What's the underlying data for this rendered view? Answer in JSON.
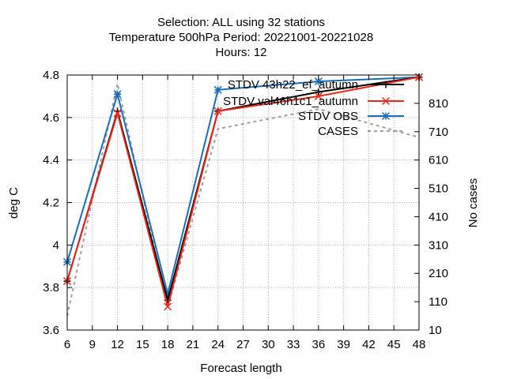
{
  "chart_data": {
    "type": "line",
    "title_lines": [
      "Selection: ALL using    32 stations",
      "Temperature 500hPa   Period: 20221001-20221028",
      "Hours:  12"
    ],
    "xlabel": "Forecast length",
    "ylabel": "deg C",
    "y2label": "No cases",
    "xlim": [
      6,
      48
    ],
    "ylim": [
      3.6,
      4.8
    ],
    "y2lim": [
      10,
      910
    ],
    "x_ticks": [
      6,
      9,
      12,
      15,
      18,
      21,
      24,
      27,
      30,
      33,
      36,
      39,
      42,
      45,
      48
    ],
    "y_ticks": [
      3.6,
      3.8,
      4.0,
      4.2,
      4.4,
      4.6,
      4.8
    ],
    "y_tick_labels": [
      "3.6",
      "3.8",
      "4",
      "4.2",
      "4.4",
      "4.6",
      "4.8"
    ],
    "y2_ticks": [
      10,
      110,
      210,
      310,
      410,
      510,
      610,
      710,
      810
    ],
    "grid": true,
    "legend_position": "top-right",
    "x": [
      6,
      12,
      18,
      24,
      36,
      48
    ],
    "series": [
      {
        "name": "STDV 43h22_ef_autumn",
        "axis": "y",
        "color": "#000000",
        "marker": "plus",
        "dash": "",
        "values": [
          3.83,
          4.63,
          3.74,
          4.63,
          4.72,
          4.79
        ]
      },
      {
        "name": "STDV val46h1c1_autumn",
        "axis": "y",
        "color": "#e8291c",
        "marker": "x",
        "dash": "",
        "values": [
          3.83,
          4.62,
          3.71,
          4.63,
          4.7,
          4.79
        ]
      },
      {
        "name": "STDV OBS",
        "axis": "y",
        "color": "#1a6db5",
        "marker": "star",
        "dash": "",
        "values": [
          3.92,
          4.71,
          3.77,
          4.73,
          4.77,
          4.79
        ]
      },
      {
        "name": "CASES",
        "axis": "y2",
        "color": "#a0a0a0",
        "marker": "none",
        "dash": "4,4",
        "values": [
          60,
          880,
          90,
          720,
          790,
          690
        ]
      }
    ]
  }
}
